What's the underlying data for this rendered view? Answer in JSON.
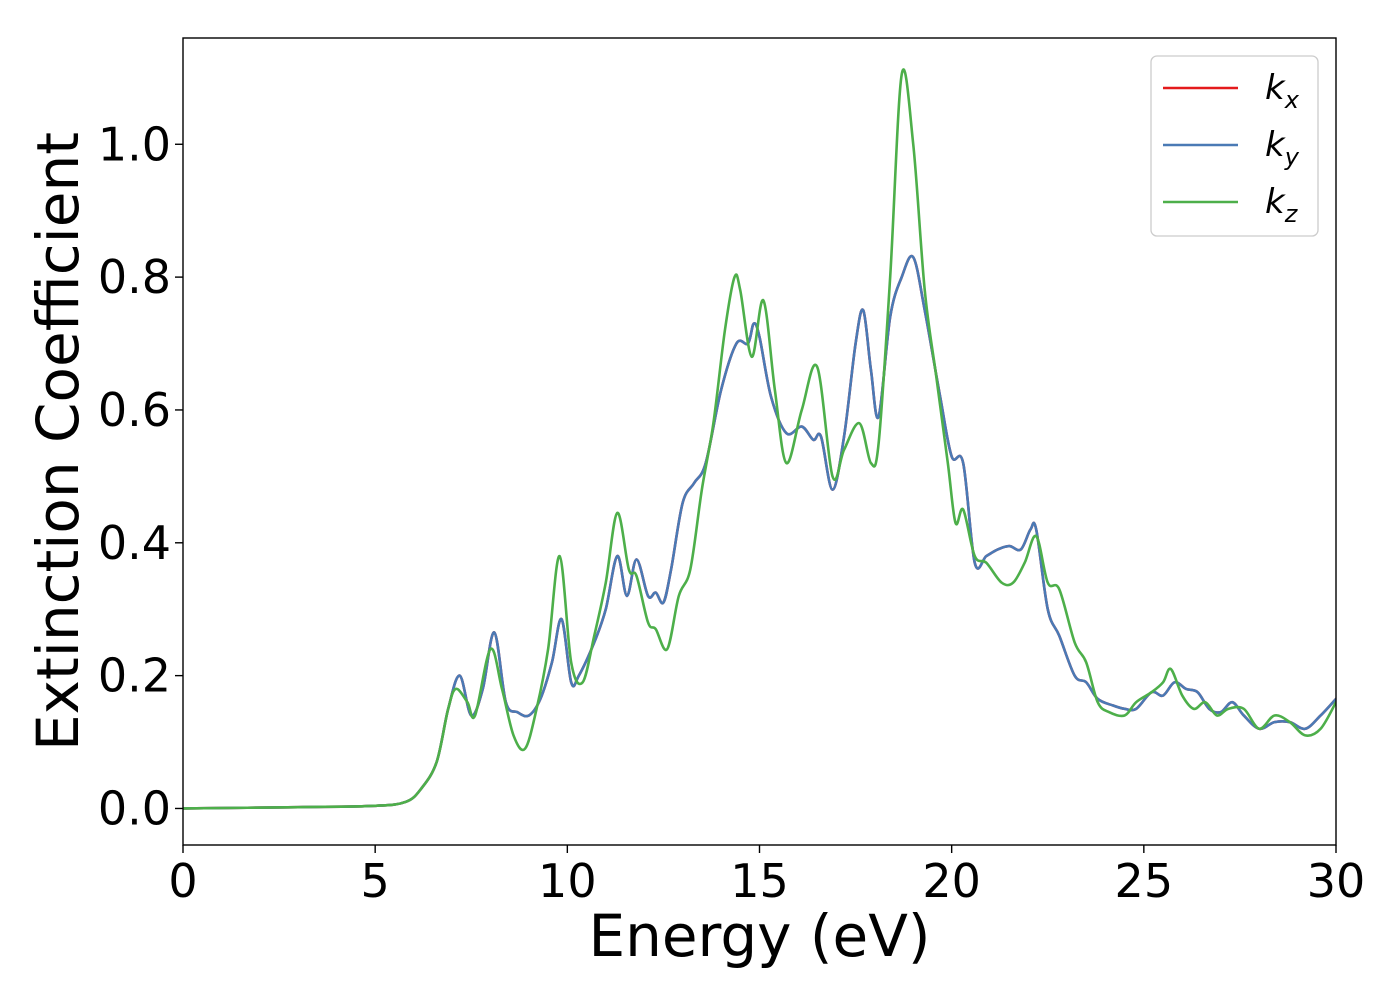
{
  "chart_data": {
    "type": "line",
    "title": "",
    "xlabel": "Energy (eV)",
    "ylabel": "Extinction Coefficient",
    "xlim": [
      0,
      30
    ],
    "ylim": [
      -0.055,
      1.16
    ],
    "xticks": [
      0,
      5,
      10,
      15,
      20,
      25,
      30
    ],
    "xtick_labels": [
      "0",
      "5",
      "10",
      "15",
      "20",
      "25",
      "30"
    ],
    "yticks": [
      0.0,
      0.2,
      0.4,
      0.6,
      0.8,
      1.0
    ],
    "ytick_labels": [
      "0.0",
      "0.2",
      "0.4",
      "0.6",
      "0.8",
      "1.0"
    ],
    "grid": false,
    "legend_position": "top-right",
    "series": [
      {
        "name": "k_x",
        "label_main": "k",
        "label_sub": "x",
        "color": "#e41a1c",
        "x": [
          0,
          3,
          5,
          5.8,
          6.2,
          6.6,
          6.9,
          7.2,
          7.5,
          7.8,
          8.1,
          8.4,
          8.7,
          9.0,
          9.3,
          9.6,
          9.85,
          10.1,
          10.3,
          10.7,
          11.0,
          11.3,
          11.55,
          11.8,
          12.1,
          12.3,
          12.5,
          12.7,
          13.0,
          13.3,
          13.6,
          14.0,
          14.4,
          14.7,
          14.85,
          15.0,
          15.3,
          15.7,
          16.1,
          16.4,
          16.6,
          16.9,
          17.2,
          17.5,
          17.7,
          17.9,
          18.1,
          18.4,
          18.7,
          19.0,
          19.3,
          19.7,
          20.0,
          20.3,
          20.6,
          20.9,
          21.2,
          21.5,
          21.8,
          22.05,
          22.2,
          22.5,
          22.8,
          23.2,
          23.5,
          23.8,
          24.2,
          24.5,
          24.8,
          25.2,
          25.5,
          25.8,
          26.1,
          26.4,
          26.7,
          27.0,
          27.3,
          27.6,
          28.0,
          28.4,
          28.8,
          29.2,
          29.6,
          30.0
        ],
        "values": [
          0,
          0.002,
          0.004,
          0.01,
          0.03,
          0.07,
          0.15,
          0.2,
          0.14,
          0.18,
          0.265,
          0.16,
          0.145,
          0.14,
          0.165,
          0.22,
          0.285,
          0.19,
          0.2,
          0.25,
          0.3,
          0.38,
          0.32,
          0.375,
          0.32,
          0.325,
          0.31,
          0.36,
          0.46,
          0.49,
          0.52,
          0.63,
          0.7,
          0.7,
          0.73,
          0.71,
          0.62,
          0.565,
          0.575,
          0.555,
          0.56,
          0.48,
          0.56,
          0.7,
          0.75,
          0.66,
          0.59,
          0.74,
          0.8,
          0.83,
          0.75,
          0.62,
          0.53,
          0.52,
          0.37,
          0.38,
          0.39,
          0.395,
          0.39,
          0.42,
          0.42,
          0.3,
          0.26,
          0.2,
          0.19,
          0.165,
          0.155,
          0.15,
          0.15,
          0.175,
          0.17,
          0.19,
          0.18,
          0.175,
          0.15,
          0.145,
          0.16,
          0.14,
          0.12,
          0.13,
          0.13,
          0.12,
          0.14,
          0.165
        ]
      },
      {
        "name": "k_y",
        "label_main": "k",
        "label_sub": "y",
        "color": "#4a7ab5",
        "x": [
          0,
          3,
          5,
          5.8,
          6.2,
          6.6,
          6.9,
          7.2,
          7.5,
          7.8,
          8.1,
          8.4,
          8.7,
          9.0,
          9.3,
          9.6,
          9.85,
          10.1,
          10.3,
          10.7,
          11.0,
          11.3,
          11.55,
          11.8,
          12.1,
          12.3,
          12.5,
          12.7,
          13.0,
          13.3,
          13.6,
          14.0,
          14.4,
          14.7,
          14.85,
          15.0,
          15.3,
          15.7,
          16.1,
          16.4,
          16.6,
          16.9,
          17.2,
          17.5,
          17.7,
          17.9,
          18.1,
          18.4,
          18.7,
          19.0,
          19.3,
          19.7,
          20.0,
          20.3,
          20.6,
          20.9,
          21.2,
          21.5,
          21.8,
          22.05,
          22.2,
          22.5,
          22.8,
          23.2,
          23.5,
          23.8,
          24.2,
          24.5,
          24.8,
          25.2,
          25.5,
          25.8,
          26.1,
          26.4,
          26.7,
          27.0,
          27.3,
          27.6,
          28.0,
          28.4,
          28.8,
          29.2,
          29.6,
          30.0
        ],
        "values": [
          0,
          0.002,
          0.004,
          0.01,
          0.03,
          0.07,
          0.15,
          0.2,
          0.14,
          0.18,
          0.265,
          0.16,
          0.145,
          0.14,
          0.165,
          0.22,
          0.285,
          0.19,
          0.2,
          0.25,
          0.3,
          0.38,
          0.32,
          0.375,
          0.32,
          0.325,
          0.31,
          0.36,
          0.46,
          0.49,
          0.52,
          0.63,
          0.7,
          0.7,
          0.73,
          0.71,
          0.62,
          0.565,
          0.575,
          0.555,
          0.56,
          0.48,
          0.56,
          0.7,
          0.75,
          0.66,
          0.59,
          0.74,
          0.8,
          0.83,
          0.75,
          0.62,
          0.53,
          0.52,
          0.37,
          0.38,
          0.39,
          0.395,
          0.39,
          0.42,
          0.42,
          0.3,
          0.26,
          0.2,
          0.19,
          0.165,
          0.155,
          0.15,
          0.15,
          0.175,
          0.17,
          0.19,
          0.18,
          0.175,
          0.15,
          0.145,
          0.16,
          0.14,
          0.12,
          0.13,
          0.13,
          0.12,
          0.14,
          0.165
        ]
      },
      {
        "name": "k_z",
        "label_main": "k",
        "label_sub": "z",
        "color": "#4daf4a",
        "x": [
          0,
          3,
          5,
          5.8,
          6.2,
          6.6,
          6.9,
          7.1,
          7.4,
          7.6,
          8.0,
          8.3,
          8.6,
          8.9,
          9.2,
          9.5,
          9.8,
          10.1,
          10.4,
          10.7,
          11.0,
          11.3,
          11.6,
          11.8,
          12.1,
          12.3,
          12.6,
          12.9,
          13.2,
          13.5,
          13.8,
          14.1,
          14.35,
          14.5,
          14.8,
          15.1,
          15.4,
          15.7,
          16.1,
          16.5,
          16.9,
          17.2,
          17.6,
          17.9,
          18.1,
          18.4,
          18.7,
          19.0,
          19.3,
          19.6,
          19.9,
          20.1,
          20.3,
          20.6,
          20.9,
          21.3,
          21.6,
          21.9,
          22.2,
          22.5,
          22.8,
          23.2,
          23.5,
          23.8,
          24.1,
          24.5,
          24.8,
          25.2,
          25.5,
          25.7,
          26.0,
          26.3,
          26.6,
          26.9,
          27.2,
          27.6,
          28.0,
          28.4,
          28.8,
          29.2,
          29.6,
          30.0
        ],
        "values": [
          0,
          0.002,
          0.004,
          0.01,
          0.03,
          0.07,
          0.15,
          0.18,
          0.16,
          0.14,
          0.24,
          0.18,
          0.11,
          0.09,
          0.15,
          0.24,
          0.38,
          0.22,
          0.19,
          0.26,
          0.34,
          0.445,
          0.36,
          0.35,
          0.28,
          0.27,
          0.24,
          0.32,
          0.36,
          0.48,
          0.58,
          0.72,
          0.8,
          0.78,
          0.68,
          0.765,
          0.63,
          0.52,
          0.6,
          0.665,
          0.5,
          0.54,
          0.58,
          0.52,
          0.55,
          0.8,
          1.105,
          1.0,
          0.78,
          0.65,
          0.52,
          0.43,
          0.45,
          0.38,
          0.37,
          0.34,
          0.34,
          0.37,
          0.41,
          0.34,
          0.33,
          0.25,
          0.22,
          0.16,
          0.145,
          0.14,
          0.16,
          0.175,
          0.19,
          0.21,
          0.17,
          0.15,
          0.16,
          0.14,
          0.15,
          0.15,
          0.12,
          0.14,
          0.13,
          0.11,
          0.12,
          0.16
        ]
      }
    ]
  }
}
